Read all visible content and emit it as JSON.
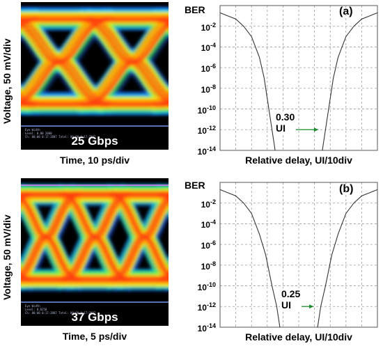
{
  "panels": [
    {
      "id": "a",
      "eye": {
        "rate_label": "25 Gbps",
        "ylabel": "Voltage, 50 mV/div",
        "xlabel": "Time, 10 ps/div",
        "small_text": [
          "Eye Width",
          "Level: 0.00 2000",
          "Ch: 00:00 0:17:2007 Total: 00:00 0:17:2007"
        ]
      },
      "ber": {
        "title": "BER",
        "letter": "(a)",
        "xlabel": "Relative delay, UI/10div",
        "ui_label": "0.30 UI",
        "ytick_base": "10",
        "ytick_exponents": [
          "-2",
          "-4",
          "-6",
          "-8",
          "-10",
          "-12",
          "-14"
        ]
      }
    },
    {
      "id": "b",
      "eye": {
        "rate_label": "37 Gbps",
        "ylabel": "Voltage, 50 mV/div",
        "xlabel": "Time, 5 ps/div",
        "small_text": [
          "Eye Width",
          "Level: 0.0258",
          "Ch: 00:00 0:17:2007 Total: 00:00 0:17:2007"
        ]
      },
      "ber": {
        "title": "BER",
        "letter": "(b)",
        "xlabel": "Relative delay, UI/10div",
        "ui_label": "0.25 UI",
        "ytick_base": "10",
        "ytick_exponents": [
          "-2",
          "-4",
          "-6",
          "-8",
          "-10",
          "-12",
          "-14"
        ]
      }
    }
  ],
  "chart_data": [
    {
      "type": "line",
      "title": "BER",
      "xlabel": "Relative delay, UI/10div",
      "ylabel": "BER",
      "yscale": "log",
      "ylim": [
        1e-14,
        1
      ],
      "xlim": [
        0,
        1
      ],
      "grid": true,
      "annotation": "0.30 UI",
      "opening_ui": [
        0.35,
        0.65
      ],
      "curves": [
        {
          "x": [
            0.0,
            0.05,
            0.1,
            0.15,
            0.2,
            0.25,
            0.28,
            0.31,
            0.33,
            0.35
          ],
          "y": [
            0.2,
            0.1,
            0.05,
            0.01,
            0.001,
            1e-05,
            1e-07,
            1e-10,
            1e-12,
            1e-14
          ]
        },
        {
          "x": [
            0.65,
            0.67,
            0.69,
            0.72,
            0.75,
            0.8,
            0.85,
            0.9,
            0.95,
            1.0
          ],
          "y": [
            1e-14,
            1e-12,
            1e-10,
            1e-07,
            1e-05,
            0.001,
            0.01,
            0.05,
            0.1,
            0.2
          ]
        }
      ],
      "color": "#333333"
    },
    {
      "type": "line",
      "title": "BER",
      "xlabel": "Relative delay, UI/10div",
      "ylabel": "BER",
      "yscale": "log",
      "ylim": [
        1e-14,
        1
      ],
      "xlim": [
        0,
        1
      ],
      "grid": true,
      "annotation": "0.25 UI",
      "opening_ui": [
        0.38,
        0.62
      ],
      "curves": [
        {
          "x": [
            0.0,
            0.05,
            0.1,
            0.15,
            0.2,
            0.25,
            0.29,
            0.33,
            0.36,
            0.38
          ],
          "y": [
            0.2,
            0.1,
            0.05,
            0.01,
            0.001,
            1e-05,
            1e-07,
            1e-10,
            1e-12,
            1e-14
          ]
        },
        {
          "x": [
            0.62,
            0.64,
            0.67,
            0.71,
            0.75,
            0.8,
            0.85,
            0.9,
            0.95,
            1.0
          ],
          "y": [
            1e-14,
            1e-12,
            1e-10,
            1e-07,
            1e-05,
            0.001,
            0.01,
            0.05,
            0.1,
            0.2
          ]
        }
      ],
      "color": "#333333"
    }
  ]
}
